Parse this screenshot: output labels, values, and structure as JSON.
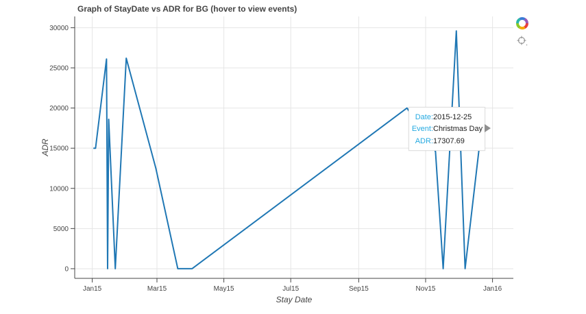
{
  "chart_data": {
    "type": "line",
    "title": "Graph of StayDate vs ADR for BG (hover to view events)",
    "xlabel": "Stay Date",
    "ylabel": "ADR",
    "xlim": [
      "2014-12-16",
      "2016-01-20"
    ],
    "ylim": [
      -1200,
      31400
    ],
    "x_ticks": [
      {
        "date": "2015-01-01",
        "label": "Jan15"
      },
      {
        "date": "2015-03-01",
        "label": "Mar15"
      },
      {
        "date": "2015-05-01",
        "label": "May15"
      },
      {
        "date": "2015-07-01",
        "label": "Jul15"
      },
      {
        "date": "2015-09-01",
        "label": "Sep15"
      },
      {
        "date": "2015-11-01",
        "label": "Nov15"
      },
      {
        "date": "2016-01-01",
        "label": "Jan16"
      }
    ],
    "y_ticks": [
      0,
      5000,
      10000,
      15000,
      20000,
      25000,
      30000
    ],
    "y_tick_labels": [
      "0",
      "5000",
      "10000",
      "15000",
      "20000",
      "25000",
      "30000"
    ],
    "grid": true,
    "line_color": "#1f77b4",
    "series": [
      {
        "points": [
          {
            "x": "2015-01-02",
            "y": 15000
          },
          {
            "x": "2015-01-04",
            "y": 15000
          },
          {
            "x": "2015-01-14",
            "y": 26100
          },
          {
            "x": "2015-01-15",
            "y": 0
          },
          {
            "x": "2015-01-16",
            "y": 18600
          },
          {
            "x": "2015-01-22",
            "y": 0
          },
          {
            "x": "2015-02-01",
            "y": 26200
          },
          {
            "x": "2015-02-28",
            "y": 12500
          },
          {
            "x": "2015-03-20",
            "y": 0
          },
          {
            "x": "2015-04-02",
            "y": 0
          },
          {
            "x": "2015-10-15",
            "y": 20000
          },
          {
            "x": "2015-11-10",
            "y": 14600
          },
          {
            "x": "2015-11-17",
            "y": 0
          },
          {
            "x": "2015-11-29",
            "y": 29600
          },
          {
            "x": "2015-12-07",
            "y": 0
          },
          {
            "x": "2015-12-21",
            "y": 16400
          },
          {
            "x": "2015-12-25",
            "y": 17307.69
          },
          {
            "x": "2015-12-27",
            "y": 17307.69
          }
        ]
      }
    ]
  },
  "tooltip": {
    "date_key": "Date:",
    "date_value": "2015-12-25",
    "event_key": "Event:",
    "event_value": "Christmas Day",
    "adr_key": "ADR:",
    "adr_value": "17307.69"
  },
  "toolbar": {
    "tools": [
      "bokeh-logo-icon",
      "crosshair-hover-icon"
    ]
  }
}
